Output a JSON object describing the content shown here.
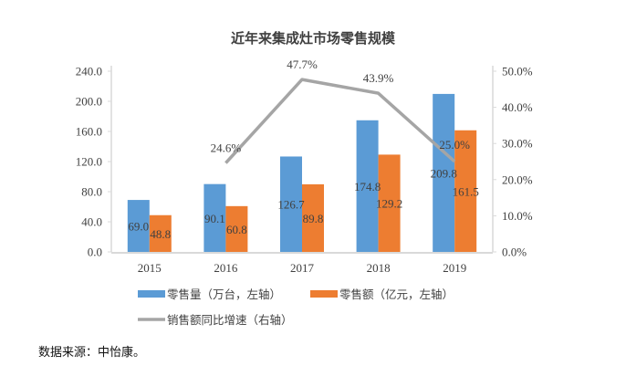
{
  "chart_data": {
    "type": "bar+line",
    "title": "近年来集成灶市场零售规模",
    "categories": [
      "2015",
      "2016",
      "2017",
      "2018",
      "2019"
    ],
    "series": [
      {
        "name": "零售量（万台，左轴）",
        "type": "bar",
        "axis": "left",
        "color": "#5B9BD5",
        "values": [
          69.0,
          90.1,
          126.7,
          174.8,
          209.8
        ],
        "labels": [
          "69.0",
          "90.1",
          "126.7",
          "174.8",
          "209.8"
        ]
      },
      {
        "name": "零售额（亿元，左轴）",
        "type": "bar",
        "axis": "left",
        "color": "#ED7D31",
        "values": [
          48.8,
          60.8,
          89.8,
          129.2,
          161.5
        ],
        "labels": [
          "48.8",
          "60.8",
          "89.8",
          "129.2",
          "161.5"
        ]
      },
      {
        "name": "销售额同比增速（右轴）",
        "type": "line",
        "axis": "right",
        "color": "#A5A5A5",
        "x": [
          "2016",
          "2017",
          "2018",
          "2019"
        ],
        "values": [
          24.6,
          47.7,
          43.9,
          25.0
        ],
        "labels": [
          "24.6%",
          "47.7%",
          "43.9%",
          "25.0%"
        ]
      }
    ],
    "left_axis": {
      "ylim": [
        0,
        240
      ],
      "ticks": [
        "0.0",
        "40.0",
        "80.0",
        "120.0",
        "160.0",
        "200.0",
        "240.0"
      ]
    },
    "right_axis": {
      "ylim": [
        0,
        50
      ],
      "ticks": [
        "0.0%",
        "10.0%",
        "20.0%",
        "30.0%",
        "40.0%",
        "50.0%"
      ]
    },
    "grid": false,
    "legend_position": "bottom"
  },
  "source_note": "数据来源：中怡康。"
}
